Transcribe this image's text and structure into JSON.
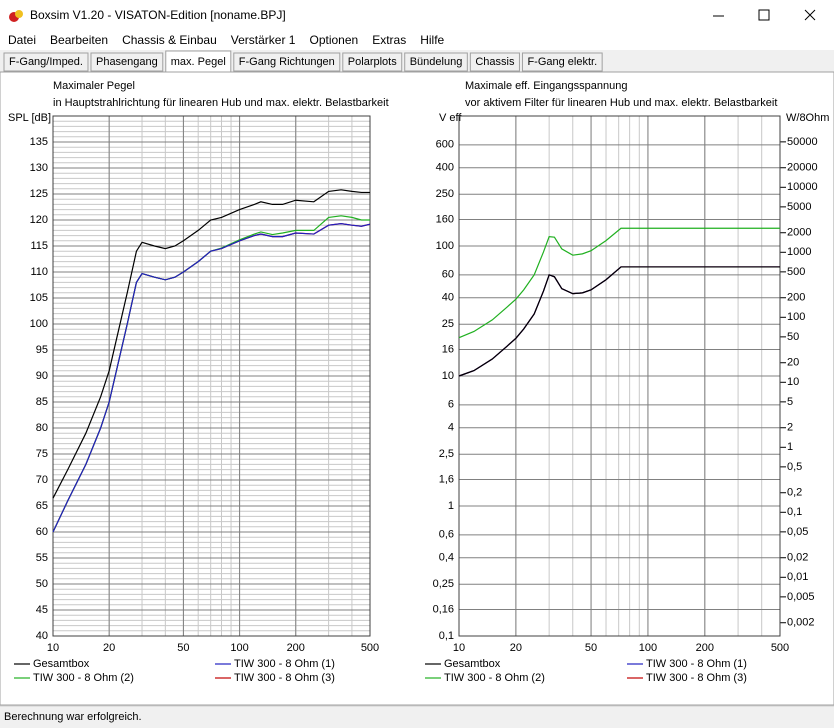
{
  "window": {
    "title": "Boxsim V1.20 - VISATON-Edition [noname.BPJ]"
  },
  "menu": [
    "Datei",
    "Bearbeiten",
    "Chassis & Einbau",
    "Verstärker 1",
    "Optionen",
    "Extras",
    "Hilfe"
  ],
  "tabs": [
    "F-Gang/Imped.",
    "Phasengang",
    "max. Pegel",
    "F-Gang Richtungen",
    "Polarplots",
    "Bündelung",
    "Chassis",
    "F-Gang elektr."
  ],
  "active_tab": 2,
  "charts": [
    {
      "type": "line",
      "title": "Maximaler Pegel",
      "subtitle": "in Hauptstrahlrichtung für linearen Hub und max. elektr. Belastbarkeit",
      "ylabel": "SPL [dB]",
      "xscale": "log",
      "yscale": "linear",
      "yminor": 1,
      "x": [
        10,
        12,
        15,
        18,
        20,
        25,
        28,
        30,
        35,
        40,
        45,
        50,
        60,
        70,
        80,
        100,
        120,
        130,
        150,
        170,
        200,
        250,
        300,
        350,
        400,
        450,
        500
      ],
      "xlim": [
        10,
        500
      ],
      "xticks": [
        10,
        20,
        50,
        100,
        200,
        500
      ],
      "ylim": [
        40,
        140
      ],
      "yticks": [
        40,
        45,
        50,
        55,
        60,
        65,
        70,
        75,
        80,
        85,
        90,
        95,
        100,
        105,
        110,
        115,
        120,
        125,
        130,
        135
      ],
      "series": [
        {
          "name": "Gesamtbox",
          "color": "#000000",
          "values": [
            66.5,
            72,
            79,
            86,
            91,
            106,
            114,
            115.7,
            115,
            114.5,
            115,
            116,
            118,
            120,
            120.5,
            122,
            123,
            123.5,
            123,
            123,
            123.8,
            123.5,
            125.5,
            125.8,
            125.5,
            125.3,
            125.3
          ]
        },
        {
          "name": "TIW 300 - 8 Ohm (1)",
          "color": "#2020c0",
          "values": [
            60,
            66,
            73,
            80,
            85,
            100,
            108,
            109.7,
            109,
            108.5,
            109,
            110,
            112,
            114,
            114.5,
            116,
            117,
            117.3,
            116.8,
            116.8,
            117.5,
            117.3,
            119,
            119.3,
            119,
            118.8,
            119.2
          ]
        },
        {
          "name": "TIW 300 - 8 Ohm (2)",
          "color": "#20b020",
          "values": [
            60,
            66,
            73,
            80,
            85,
            100,
            108,
            109.7,
            109,
            108.5,
            109,
            110,
            112,
            114,
            114.6,
            116.2,
            117.3,
            117.7,
            117.2,
            117.5,
            118,
            118,
            120.5,
            120.8,
            120.5,
            120,
            120
          ]
        },
        {
          "name": "TIW 300 - 8 Ohm (3)",
          "color": "#c00000",
          "values": [
            60,
            66,
            73,
            80,
            85,
            100,
            108,
            109.7,
            109,
            108.5,
            109,
            110,
            112,
            114,
            114.5,
            116,
            117,
            117.3,
            116.8,
            116.8,
            117.5,
            117.3,
            119,
            119.3,
            119,
            118.8,
            119.2
          ]
        }
      ]
    },
    {
      "type": "line",
      "title": "Maximale eff. Eingangsspannung",
      "subtitle": "vor aktivem Filter für linearen Hub und max. elektr. Belastbarkeit",
      "ylabel": "V eff",
      "y2label": "W/8Ohm",
      "xscale": "log",
      "yscale": "log",
      "y2scale": "log",
      "x": [
        10,
        12,
        15,
        18,
        20,
        22,
        25,
        28,
        30,
        32,
        35,
        40,
        45,
        50,
        60,
        72,
        100,
        200,
        500
      ],
      "xlim": [
        10,
        500
      ],
      "xticks": [
        10,
        20,
        50,
        100,
        200,
        500
      ],
      "ylim": [
        0.1,
        1000
      ],
      "yticks": [
        {
          "value": 0.1,
          "label": "0,1"
        },
        {
          "value": 0.16,
          "label": "0,16"
        },
        {
          "value": 0.25,
          "label": "0,25"
        },
        {
          "value": 0.4,
          "label": "0,4"
        },
        {
          "value": 0.6,
          "label": "0,6"
        },
        1,
        {
          "value": 1.6,
          "label": "1,6"
        },
        {
          "value": 2.5,
          "label": "2,5"
        },
        4,
        6,
        10,
        16,
        25,
        40,
        60,
        100,
        160,
        250,
        400,
        600
      ],
      "y2lim": [
        0.00125,
        125000
      ],
      "y2ticks": [
        {
          "value": 0.002,
          "label": "0,002"
        },
        {
          "value": 0.005,
          "label": "0,005"
        },
        {
          "value": 0.01,
          "label": "0,01"
        },
        {
          "value": 0.02,
          "label": "0,02"
        },
        {
          "value": 0.05,
          "label": "0,05"
        },
        {
          "value": 0.1,
          "label": "0,1"
        },
        {
          "value": 0.2,
          "label": "0,2"
        },
        {
          "value": 0.5,
          "label": "0,5"
        },
        1,
        2,
        5,
        10,
        20,
        50,
        100,
        200,
        500,
        1000,
        2000,
        5000,
        10000,
        20000,
        50000
      ],
      "series": [
        {
          "name": "Gesamtbox",
          "color": "#000000",
          "values": [
            10,
            11,
            13.5,
            17,
            19.5,
            23,
            30,
            45,
            60,
            58,
            47,
            43,
            43.6,
            46,
            55,
            69,
            69,
            69,
            69
          ]
        },
        {
          "name": "TIW 300 - 8 Ohm (1)",
          "color": "#2020c0",
          "values": [
            10,
            11,
            13.5,
            17,
            19.5,
            23,
            30,
            45,
            60,
            58,
            47,
            43,
            43.6,
            46,
            55,
            69,
            69,
            69,
            69
          ]
        },
        {
          "name": "TIW 300 - 8 Ohm (2)",
          "color": "#20b020",
          "values": [
            19.7,
            22,
            27,
            34,
            39,
            46,
            60,
            90,
            118,
            117,
            95,
            85,
            87,
            92,
            110,
            137,
            137,
            137,
            137
          ]
        },
        {
          "name": "TIW 300 - 8 Ohm (3)",
          "color": "#c00000",
          "values": [
            10,
            11,
            13.5,
            17,
            19.5,
            23,
            30,
            45,
            60,
            58,
            47,
            43,
            43.6,
            46,
            55,
            69,
            69,
            69,
            69
          ]
        }
      ]
    }
  ],
  "status": "Berechnung war erfolgreich."
}
